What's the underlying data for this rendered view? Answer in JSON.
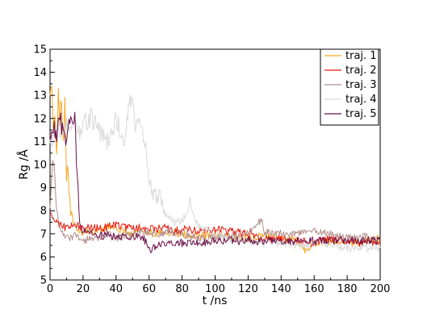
{
  "chart_data": {
    "type": "line",
    "xlabel": "t /ns",
    "ylabel": "Rg /Å",
    "xlim": [
      0,
      200
    ],
    "ylim": [
      5,
      15
    ],
    "xticks": [
      0,
      20,
      40,
      60,
      80,
      100,
      120,
      140,
      160,
      180,
      200
    ],
    "yticks": [
      5,
      6,
      7,
      8,
      9,
      10,
      11,
      12,
      13,
      14,
      15
    ],
    "grid": false,
    "legend_position": "top-right",
    "series": [
      {
        "name": "traj. 1",
        "color": "#f5a623",
        "x": [
          0,
          1,
          2,
          3,
          4,
          5,
          6,
          7,
          8,
          9,
          10,
          11,
          12,
          14,
          16,
          18,
          20,
          25,
          30,
          35,
          40,
          45,
          50,
          55,
          60,
          65,
          70,
          80,
          90,
          100,
          110,
          120,
          130,
          140,
          150,
          155,
          160,
          170,
          180,
          190,
          200
        ],
        "y": [
          12.6,
          13.8,
          11.5,
          12.2,
          10.5,
          13.2,
          12.0,
          12.8,
          11.0,
          12.5,
          9.0,
          10.0,
          8.2,
          7.5,
          7.2,
          7.1,
          7.0,
          7.2,
          7.1,
          7.3,
          7.2,
          7.1,
          7.0,
          7.2,
          7.1,
          7.0,
          7.1,
          7.0,
          6.9,
          7.0,
          6.9,
          6.8,
          6.9,
          6.8,
          6.7,
          6.2,
          6.6,
          6.7,
          6.6,
          6.7,
          6.8
        ]
      },
      {
        "name": "traj. 2",
        "color": "#e8190e",
        "x": [
          0,
          2,
          4,
          6,
          8,
          10,
          15,
          20,
          25,
          30,
          35,
          40,
          45,
          50,
          55,
          60,
          65,
          70,
          75,
          80,
          90,
          100,
          110,
          120,
          130,
          140,
          150,
          160,
          170,
          180,
          190,
          200
        ],
        "y": [
          7.9,
          7.7,
          7.5,
          7.4,
          7.3,
          7.3,
          7.4,
          7.2,
          7.3,
          7.2,
          7.3,
          7.4,
          7.3,
          7.2,
          7.3,
          7.2,
          7.2,
          7.3,
          7.1,
          7.2,
          7.1,
          7.2,
          7.1,
          7.0,
          6.8,
          6.8,
          6.7,
          6.6,
          6.8,
          6.7,
          6.6,
          6.6
        ]
      },
      {
        "name": "traj. 3",
        "color": "#b38f8c",
        "x": [
          0,
          1,
          2,
          3,
          4,
          5,
          6,
          8,
          10,
          12,
          15,
          20,
          25,
          30,
          35,
          40,
          45,
          50,
          55,
          60,
          65,
          70,
          80,
          90,
          100,
          110,
          120,
          128,
          130,
          140,
          150,
          160,
          170,
          180,
          190,
          200
        ],
        "y": [
          8.5,
          9.5,
          10.2,
          9.0,
          8.0,
          7.6,
          7.2,
          6.9,
          6.8,
          6.8,
          6.9,
          6.7,
          6.8,
          6.9,
          7.0,
          6.8,
          6.9,
          7.0,
          7.1,
          7.0,
          6.9,
          7.1,
          7.0,
          6.8,
          6.8,
          6.9,
          7.0,
          7.6,
          7.1,
          7.0,
          7.0,
          7.1,
          7.0,
          6.8,
          6.9,
          6.7
        ]
      },
      {
        "name": "traj. 4",
        "color": "#d9d9d9",
        "x": [
          0,
          5,
          10,
          15,
          18,
          20,
          25,
          30,
          35,
          40,
          45,
          48,
          50,
          52,
          55,
          58,
          60,
          62,
          65,
          70,
          75,
          80,
          85,
          90,
          100,
          110,
          120,
          130,
          140,
          150,
          160,
          170,
          180,
          190,
          200
        ],
        "y": [
          11.0,
          11.5,
          11.8,
          12.0,
          11.5,
          11.8,
          12.0,
          11.5,
          11.0,
          12.0,
          11.0,
          12.5,
          12.8,
          11.5,
          12.0,
          10.5,
          9.5,
          8.5,
          8.8,
          7.8,
          7.5,
          7.6,
          8.2,
          7.3,
          7.0,
          6.8,
          6.7,
          6.6,
          6.6,
          6.5,
          6.6,
          6.5,
          6.4,
          6.4,
          6.4
        ]
      },
      {
        "name": "traj. 5",
        "color": "#6b0f4a",
        "x": [
          0,
          2,
          4,
          6,
          8,
          10,
          12,
          14,
          15,
          16,
          17,
          18,
          20,
          25,
          30,
          35,
          40,
          45,
          50,
          55,
          57,
          60,
          65,
          70,
          75,
          80,
          90,
          100,
          110,
          120,
          130,
          140,
          150,
          160,
          170,
          180,
          190,
          200
        ],
        "y": [
          11.0,
          11.8,
          11.2,
          12.0,
          11.5,
          10.8,
          12.2,
          11.9,
          12.5,
          10.0,
          9.2,
          7.3,
          7.1,
          7.0,
          6.9,
          7.0,
          6.8,
          6.9,
          6.9,
          6.9,
          6.8,
          6.3,
          6.5,
          6.6,
          6.6,
          6.6,
          6.6,
          6.7,
          6.7,
          6.7,
          6.7,
          6.7,
          6.7,
          6.7,
          6.7,
          6.7,
          6.7,
          6.7
        ]
      }
    ]
  }
}
